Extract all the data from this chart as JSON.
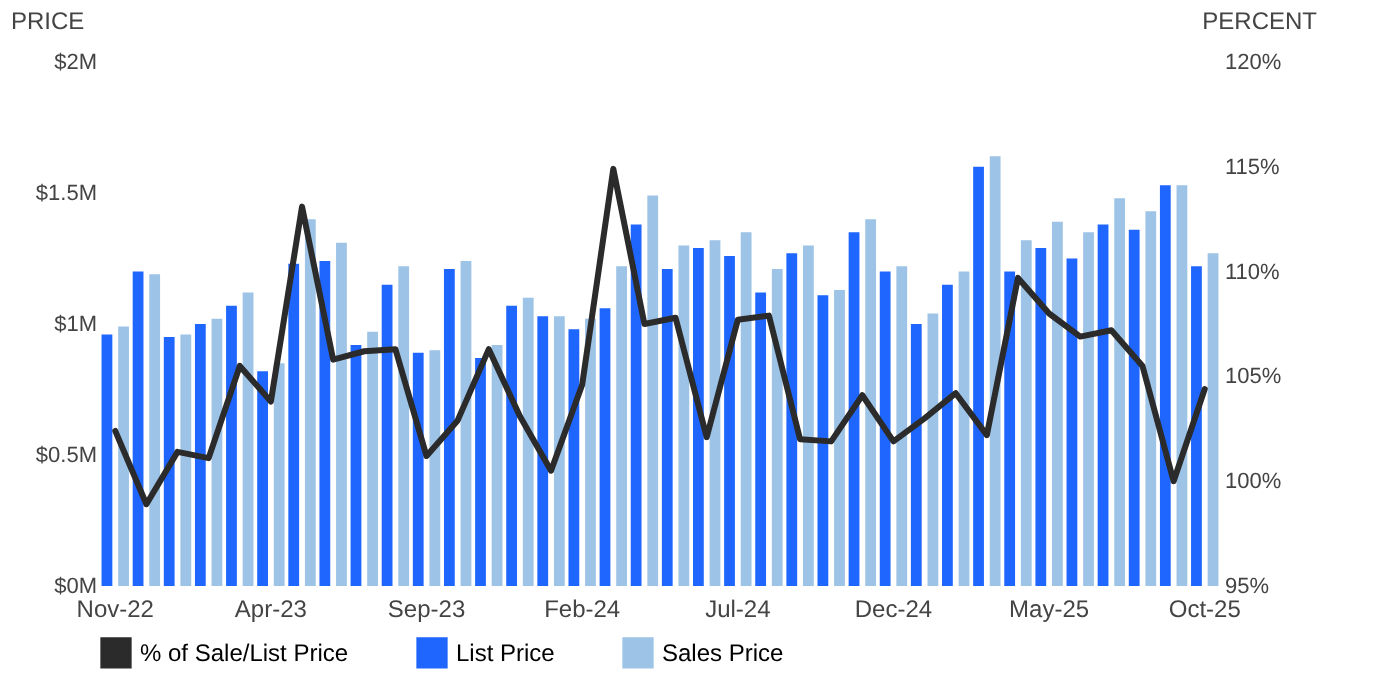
{
  "chart_data": {
    "type": "bar",
    "ylabel": "PRICE",
    "y2label": "PERCENT",
    "categories": [
      "Nov-22",
      null,
      null,
      null,
      null,
      "Apr-23",
      null,
      null,
      null,
      null,
      "Sep-23",
      null,
      null,
      null,
      null,
      "Feb-24",
      null,
      null,
      null,
      null,
      "Jul-24",
      null,
      null,
      null,
      null,
      "Dec-24",
      null,
      null,
      null,
      null,
      "May-25",
      null,
      null,
      null,
      null,
      "Oct-25"
    ],
    "series": [
      {
        "name": "% of Sale/List Price",
        "type": "line",
        "axis": "y2",
        "color": "#2b2b2b",
        "values": [
          102.4,
          98.9,
          101.4,
          101.1,
          105.5,
          103.8,
          113.1,
          105.8,
          106.2,
          106.3,
          101.2,
          102.9,
          106.3,
          103.1,
          100.5,
          104.6,
          114.9,
          107.5,
          107.8,
          102.1,
          107.7,
          107.9,
          102.0,
          101.9,
          104.1,
          101.9,
          103.0,
          104.2,
          102.2,
          109.7,
          108.0,
          106.9,
          107.2,
          105.5,
          100.0,
          104.4
        ]
      },
      {
        "name": "List Price",
        "color": "#1f66ff",
        "values": [
          0.96,
          1.2,
          0.95,
          1.0,
          1.07,
          0.82,
          1.23,
          1.24,
          0.92,
          1.15,
          0.89,
          1.21,
          0.87,
          1.07,
          1.03,
          0.98,
          1.06,
          1.38,
          1.21,
          1.29,
          1.26,
          1.12,
          1.27,
          1.11,
          1.35,
          1.2,
          1.0,
          1.15,
          1.6,
          1.2,
          1.29,
          1.25,
          1.38,
          1.36,
          1.53,
          1.22
        ]
      },
      {
        "name": "Sales Price",
        "color": "#9dc3e6",
        "values": [
          0.99,
          1.19,
          0.96,
          1.02,
          1.12,
          0.85,
          1.4,
          1.31,
          0.97,
          1.22,
          0.9,
          1.24,
          0.92,
          1.1,
          1.03,
          1.02,
          1.22,
          1.49,
          1.3,
          1.32,
          1.35,
          1.21,
          1.3,
          1.13,
          1.4,
          1.22,
          1.04,
          1.2,
          1.64,
          1.32,
          1.39,
          1.35,
          1.48,
          1.43,
          1.53,
          1.27
        ]
      }
    ],
    "ylim": [
      0,
      2
    ],
    "yticks": [
      {
        "value": 0,
        "label": "$0M"
      },
      {
        "value": 0.5,
        "label": "$0.5M"
      },
      {
        "value": 1,
        "label": "$1M"
      },
      {
        "value": 1.5,
        "label": "$1.5M"
      },
      {
        "value": 2,
        "label": "$2M"
      }
    ],
    "y2lim": [
      95,
      120
    ],
    "y2ticks": [
      {
        "value": 95,
        "label": "95%"
      },
      {
        "value": 100,
        "label": "100%"
      },
      {
        "value": 105,
        "label": "105%"
      },
      {
        "value": 110,
        "label": "110%"
      },
      {
        "value": 115,
        "label": "115%"
      },
      {
        "value": 120,
        "label": "120%"
      }
    ],
    "legend": "bottom"
  }
}
